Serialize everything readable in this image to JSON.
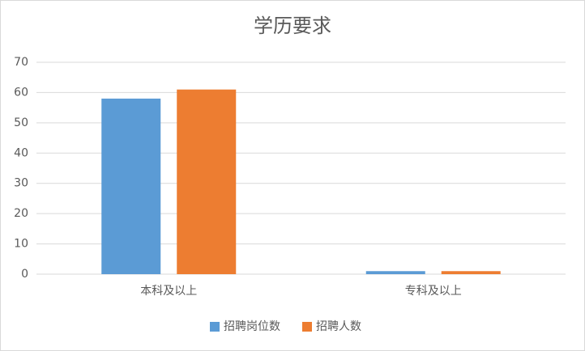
{
  "chart_data": {
    "type": "bar",
    "title": "学历要求",
    "categories": [
      "本科及以上",
      "专科及以上"
    ],
    "series": [
      {
        "name": "招聘岗位数",
        "color": "#5b9bd5",
        "values": [
          58,
          1
        ]
      },
      {
        "name": "招聘人数",
        "color": "#ed7d31",
        "values": [
          61,
          1
        ]
      }
    ],
    "ylim": [
      0,
      70
    ],
    "yticks": [
      0,
      10,
      20,
      30,
      40,
      50,
      60,
      70
    ],
    "grid": true,
    "legend": "bottom"
  }
}
